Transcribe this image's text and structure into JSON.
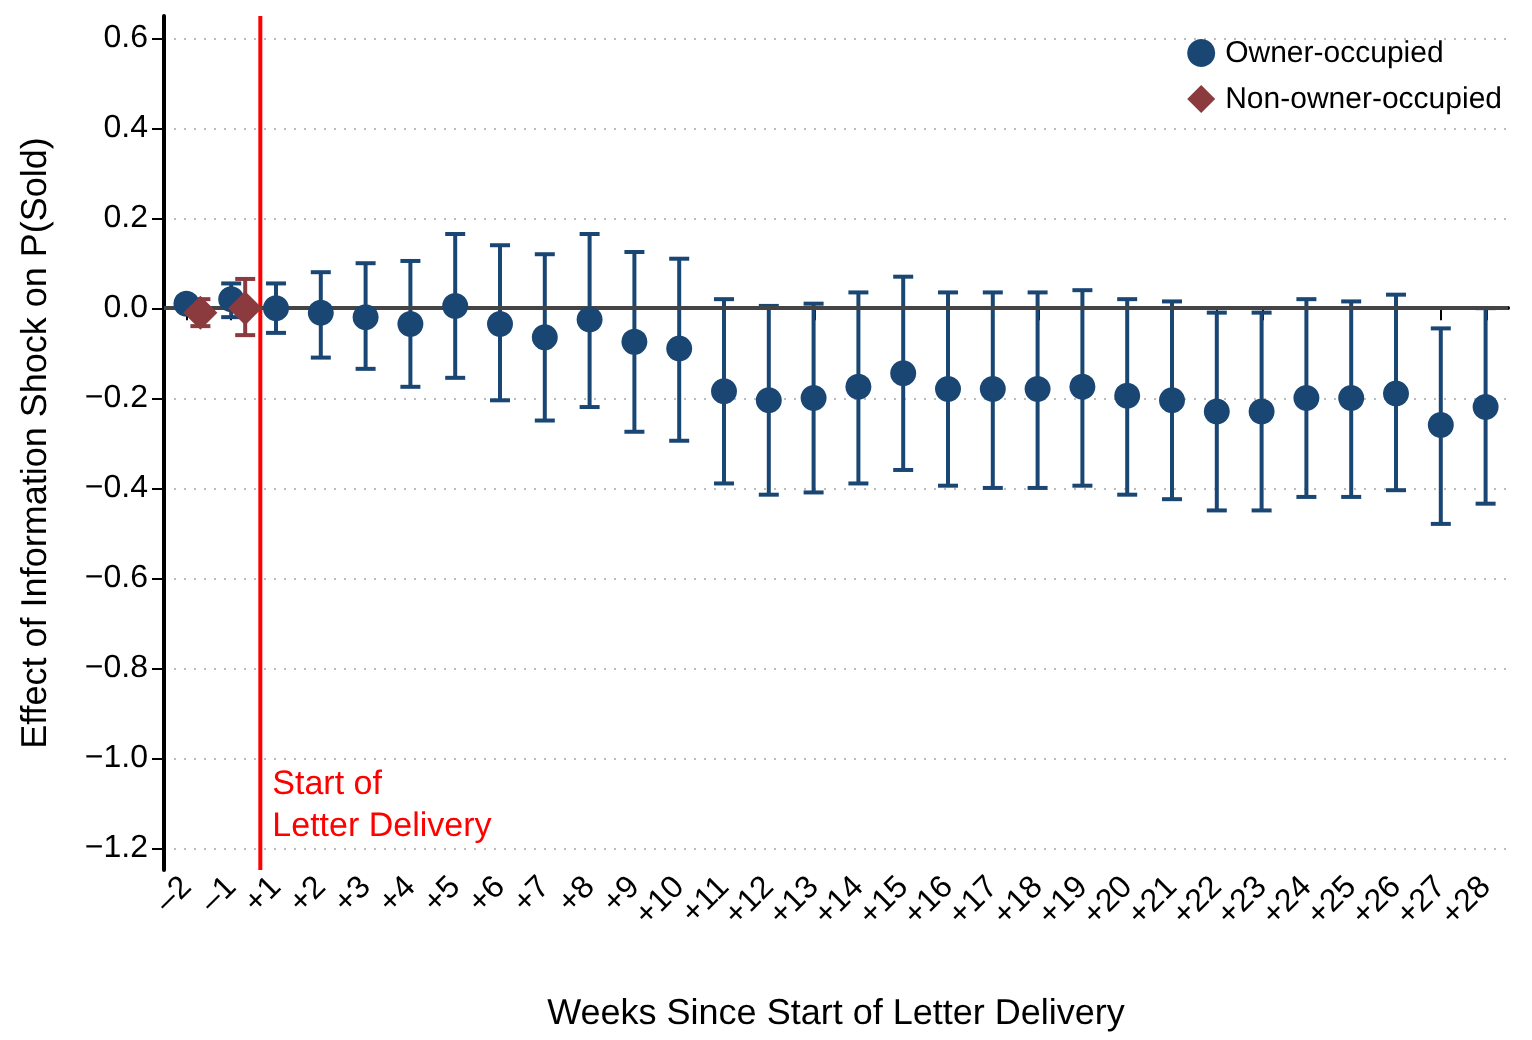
{
  "chart_data": {
    "type": "scatter",
    "xlabel": "Weeks Since Start of Letter Delivery",
    "ylabel": "Effect of Information Shock on P(Sold)",
    "categories": [
      "–2",
      "–1",
      "+1",
      "+2",
      "+3",
      "+4",
      "+5",
      "+6",
      "+7",
      "+8",
      "+9",
      "+10",
      "+11",
      "+12",
      "+13",
      "+14",
      "+15",
      "+16",
      "+17",
      "+18",
      "+19",
      "+20",
      "+21",
      "+22",
      "+23",
      "+24",
      "+25",
      "+26",
      "+27",
      "+28"
    ],
    "series": [
      {
        "name": "Owner-occupied",
        "color": "#1a4674",
        "marker": "circle",
        "values": [
          0.01,
          0.02,
          0.0,
          -0.01,
          -0.02,
          -0.035,
          0.005,
          -0.035,
          -0.065,
          -0.025,
          -0.075,
          -0.09,
          -0.185,
          -0.205,
          -0.2,
          -0.175,
          -0.145,
          -0.18,
          -0.18,
          -0.18,
          -0.175,
          -0.195,
          -0.205,
          -0.23,
          -0.23,
          -0.2,
          -0.2,
          -0.19,
          -0.26,
          -0.22
        ],
        "errors": [
          [
            0.0,
            0.02
          ],
          [
            -0.02,
            0.055
          ],
          [
            -0.055,
            0.055
          ],
          [
            -0.11,
            0.08
          ],
          [
            -0.135,
            0.1
          ],
          [
            -0.175,
            0.105
          ],
          [
            -0.155,
            0.165
          ],
          [
            -0.205,
            0.14
          ],
          [
            -0.25,
            0.12
          ],
          [
            -0.22,
            0.165
          ],
          [
            -0.275,
            0.125
          ],
          [
            -0.295,
            0.11
          ],
          [
            -0.39,
            0.02
          ],
          [
            -0.415,
            0.005
          ],
          [
            -0.41,
            0.01
          ],
          [
            -0.39,
            0.035
          ],
          [
            -0.36,
            0.07
          ],
          [
            -0.395,
            0.035
          ],
          [
            -0.4,
            0.035
          ],
          [
            -0.4,
            0.035
          ],
          [
            -0.395,
            0.04
          ],
          [
            -0.415,
            0.02
          ],
          [
            -0.425,
            0.015
          ],
          [
            -0.45,
            -0.01
          ],
          [
            -0.45,
            -0.01
          ],
          [
            -0.42,
            0.02
          ],
          [
            -0.42,
            0.015
          ],
          [
            -0.405,
            0.03
          ],
          [
            -0.48,
            -0.045
          ],
          [
            -0.435,
            0.0
          ]
        ]
      },
      {
        "name": "Non-owner-occupied",
        "color": "#8b3a3e",
        "marker": "diamond",
        "values": [
          -0.01,
          0.0,
          null,
          null,
          null,
          null,
          null,
          null,
          null,
          null,
          null,
          null,
          null,
          null,
          null,
          null,
          null,
          null,
          null,
          null,
          null,
          null,
          null,
          null,
          null,
          null,
          null,
          null,
          null,
          null
        ],
        "errors": [
          [
            -0.04,
            0.02
          ],
          [
            -0.06,
            0.065
          ],
          null,
          null,
          null,
          null,
          null,
          null,
          null,
          null,
          null,
          null,
          null,
          null,
          null,
          null,
          null,
          null,
          null,
          null,
          null,
          null,
          null,
          null,
          null,
          null,
          null,
          null,
          null,
          null
        ]
      }
    ],
    "ylim": [
      -1.25,
      0.65
    ],
    "yticks": [
      {
        "value": -1.2,
        "label": "−1.2"
      },
      {
        "value": -1.0,
        "label": "−1.0"
      },
      {
        "value": -0.8,
        "label": "−0.8"
      },
      {
        "value": -0.6,
        "label": "−0.6"
      },
      {
        "value": -0.4,
        "label": "−0.4"
      },
      {
        "value": -0.2,
        "label": "−0.2"
      },
      {
        "value": 0,
        "label": "0.0"
      },
      0.2,
      0.4,
      0.6
    ],
    "ref_lines": [
      {
        "axis": "x",
        "value": "+1",
        "label": "Start of\nLetter Delivery",
        "color": "#ff0000",
        "line_style": "solid"
      },
      {
        "axis": "y",
        "value": 0,
        "color": "#444444",
        "line_style": "solid"
      }
    ],
    "grid": "y",
    "legend": "top right"
  }
}
